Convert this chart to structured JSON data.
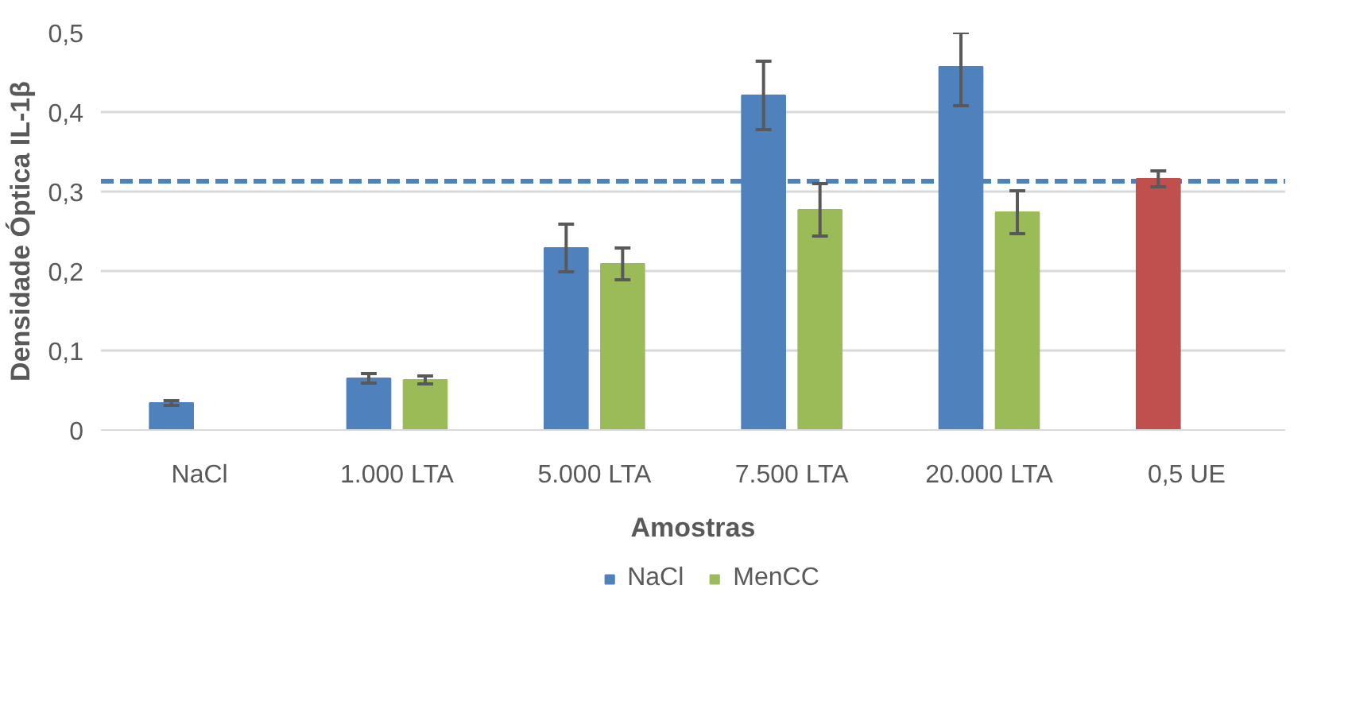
{
  "chart_data": {
    "type": "bar",
    "xlabel": "Amostras",
    "ylabel": "Densidade Óptica IL-1β",
    "categories": [
      "NaCl",
      "1.000 LTA",
      "5.000 LTA",
      "7.500 LTA",
      "20.000 LTA",
      "0,5 UE"
    ],
    "series": [
      {
        "name": "NaCl",
        "color": "#4f81bd",
        "colors": [
          "#4f81bd",
          "#4f81bd",
          "#4f81bd",
          "#4f81bd",
          "#4f81bd",
          "#c0504d"
        ],
        "values": [
          0.034,
          0.065,
          0.229,
          0.421,
          0.457,
          0.316
        ],
        "errors": [
          0.003,
          0.006,
          0.03,
          0.043,
          [
            0.408,
            0.5
          ],
          0.01
        ]
      },
      {
        "name": "MenCC",
        "color": "#9bbb59",
        "values": [
          0.0,
          0.063,
          0.209,
          0.277,
          0.274,
          null
        ],
        "errors": [
          null,
          0.005,
          0.02,
          0.033,
          0.027,
          null
        ]
      }
    ],
    "ylim": [
      0,
      0.5
    ],
    "yticks": [
      {
        "value": 0,
        "label": "0"
      },
      {
        "value": 0.1,
        "label": "0,1"
      },
      {
        "value": 0.2,
        "label": "0,2"
      },
      {
        "value": 0.3,
        "label": "0,3"
      },
      {
        "value": 0.4,
        "label": "0,4"
      },
      {
        "value": 0.5,
        "label": "0,5"
      }
    ],
    "ref_lines": [
      {
        "axis": "y",
        "value": 0.313,
        "color": "#4f81bd",
        "line_style": "dashed"
      }
    ],
    "grid": "y",
    "legend": "bottom"
  }
}
